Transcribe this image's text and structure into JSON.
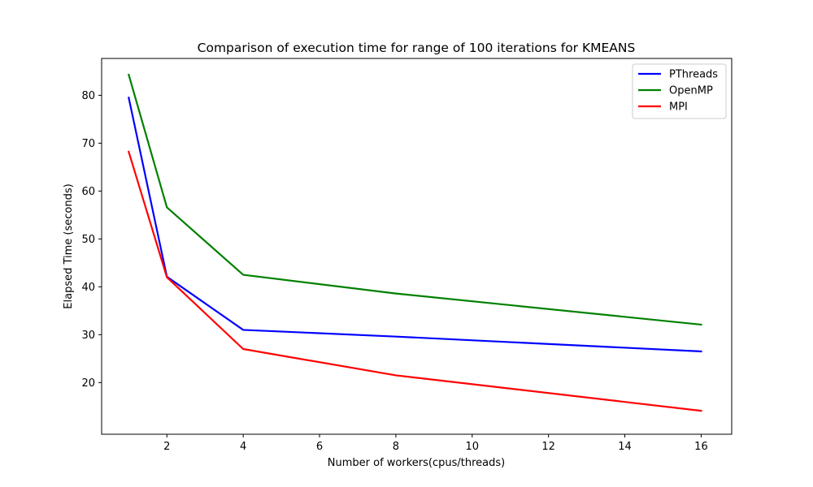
{
  "chart_data": {
    "type": "line",
    "title": "Comparison of execution time for range of 100 iterations for KMEANS",
    "xlabel": "Number of workers(cpus/threads)",
    "ylabel": "Elapsed Time (seconds)",
    "x": [
      1,
      2,
      4,
      8,
      16
    ],
    "xlim": [
      0.29,
      16.8
    ],
    "ylim": [
      9.2,
      87.7
    ],
    "xticks": [
      2,
      4,
      6,
      8,
      10,
      12,
      14,
      16
    ],
    "yticks": [
      20,
      30,
      40,
      50,
      60,
      70,
      80
    ],
    "grid": false,
    "legend_position": "top-right",
    "series": [
      {
        "name": "PThreads",
        "color": "#0000ff",
        "values": [
          79.5,
          42.1,
          31.0,
          29.6,
          26.5
        ]
      },
      {
        "name": "OpenMP",
        "color": "#008000",
        "values": [
          84.3,
          56.6,
          42.5,
          38.6,
          32.1
        ]
      },
      {
        "name": "MPI",
        "color": "#ff0000",
        "values": [
          68.2,
          42.0,
          27.0,
          21.5,
          14.1
        ]
      }
    ]
  }
}
